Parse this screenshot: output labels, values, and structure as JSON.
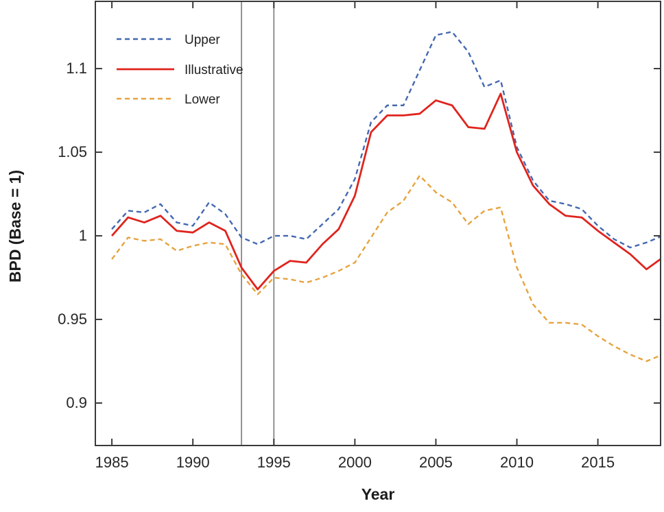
{
  "chart_data": {
    "type": "line",
    "title": "",
    "xlabel": "Year",
    "ylabel": "BPD (Base = 1)",
    "x": [
      1985,
      1986,
      1987,
      1988,
      1989,
      1990,
      1991,
      1992,
      1993,
      1994,
      1995,
      1996,
      1997,
      1998,
      1999,
      2000,
      2001,
      2002,
      2003,
      2004,
      2005,
      2006,
      2007,
      2008,
      2009,
      2010,
      2011,
      2012,
      2013,
      2014,
      2015,
      2016,
      2017,
      2018,
      2019
    ],
    "series": [
      {
        "name": "Upper",
        "color": "#4468b1",
        "style": "dashed",
        "values": [
          1.004,
          1.015,
          1.014,
          1.019,
          1.008,
          1.006,
          1.02,
          1.013,
          0.999,
          0.995,
          1.0,
          1.0,
          0.998,
          1.007,
          1.016,
          1.034,
          1.068,
          1.078,
          1.078,
          1.099,
          1.12,
          1.122,
          1.11,
          1.089,
          1.093,
          1.053,
          1.033,
          1.021,
          1.019,
          1.016,
          1.006,
          0.998,
          0.993,
          0.996,
          1.0
        ]
      },
      {
        "name": "Illustrative",
        "color": "#e0231c",
        "style": "solid",
        "values": [
          1.0,
          1.011,
          1.008,
          1.012,
          1.003,
          1.002,
          1.008,
          1.003,
          0.981,
          0.968,
          0.979,
          0.985,
          0.984,
          0.995,
          1.004,
          1.024,
          1.062,
          1.072,
          1.072,
          1.073,
          1.081,
          1.078,
          1.065,
          1.064,
          1.085,
          1.05,
          1.03,
          1.019,
          1.012,
          1.011,
          1.003,
          0.996,
          0.989,
          0.98,
          0.987
        ]
      },
      {
        "name": "Lower",
        "color": "#e6a33e",
        "style": "dashed",
        "values": [
          0.986,
          0.999,
          0.997,
          0.998,
          0.991,
          0.994,
          0.996,
          0.995,
          0.977,
          0.965,
          0.975,
          0.974,
          0.972,
          0.975,
          0.979,
          0.984,
          0.999,
          1.014,
          1.021,
          1.036,
          1.026,
          1.02,
          1.007,
          1.015,
          1.017,
          0.981,
          0.959,
          0.948,
          0.948,
          0.947,
          0.94,
          0.934,
          0.929,
          0.925,
          0.929
        ]
      }
    ],
    "xticks": [
      1985,
      1990,
      1995,
      2000,
      2005,
      2010,
      2015
    ],
    "xtick_labels": [
      "1985",
      "1990",
      "1995",
      "2000",
      "2005",
      "2010",
      "2015"
    ],
    "yticks": [
      0.9,
      0.95,
      1,
      1.05,
      1.1
    ],
    "ytick_labels": [
      "0.9",
      "0.95",
      "1",
      "1.05",
      "1.1"
    ],
    "xlim": [
      1983.98,
      2018.87
    ],
    "ylim": [
      0.8746,
      1.1402
    ],
    "vlines": [
      1993,
      1995
    ],
    "vline_color": "#929292",
    "axis_color": "#3a3a3a",
    "grid": false,
    "legend_position": "top-left"
  }
}
